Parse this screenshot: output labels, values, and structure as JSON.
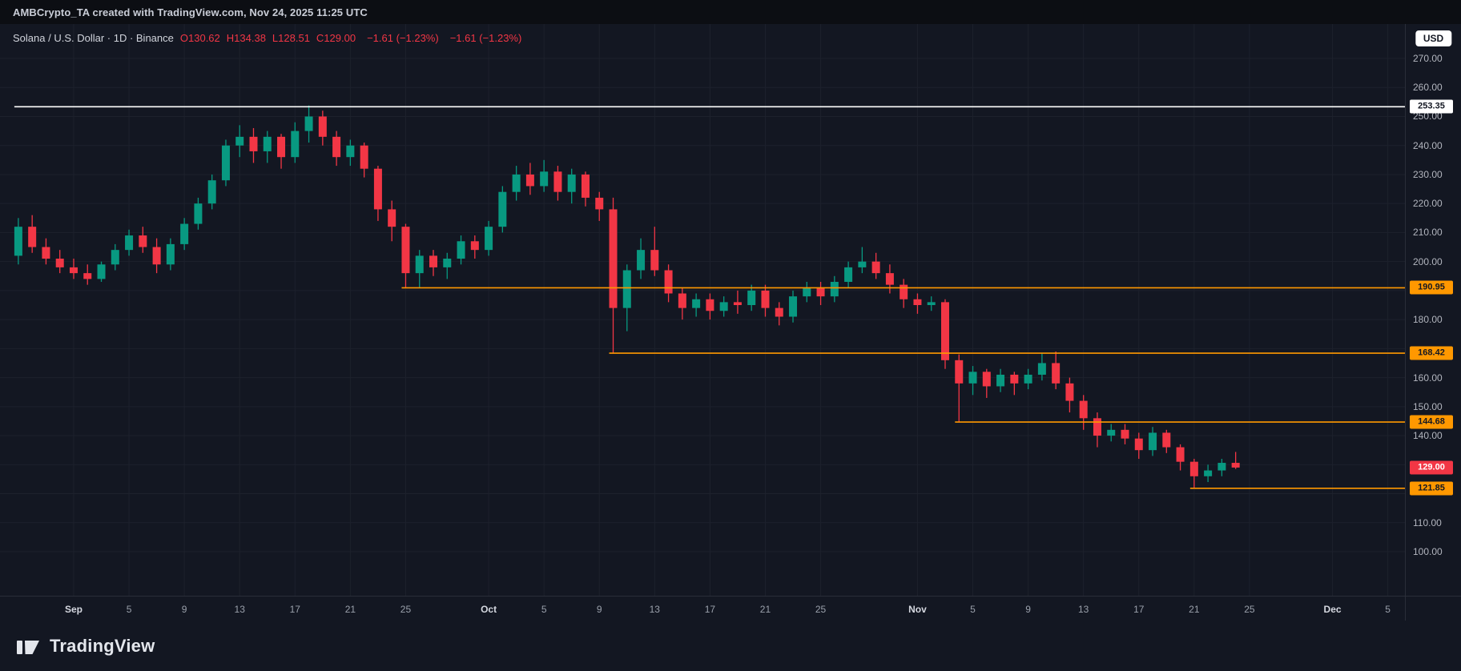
{
  "top_bar": {
    "attribution": "AMBCrypto_TA created with TradingView.com, Nov 24, 2025 11:25 UTC"
  },
  "header": {
    "symbol_title": "Solana / U.S. Dollar · 1D · Binance",
    "ohlc": {
      "o_label": "O",
      "o": "130.62",
      "h_label": "H",
      "h": "134.38",
      "l_label": "L",
      "l": "128.51",
      "c_label": "C",
      "c": "129.00"
    },
    "change": "−1.61 (−1.23%)",
    "change_repeat": "−1.61 (−1.23%)"
  },
  "axis": {
    "currency_button": "USD"
  },
  "footer": {
    "brand": "TradingView"
  },
  "colors": {
    "background": "#131722",
    "grid": "#1d212c",
    "axis_text": "#b2b5be",
    "up": "#089981",
    "down": "#f23645",
    "level_orange": "#ff9800",
    "level_white": "#ffffff",
    "last_price_bg": "#f23645"
  },
  "chart_data": {
    "type": "candlestick",
    "title": "Solana / U.S. Dollar",
    "timeframe": "1D",
    "exchange": "Binance",
    "y_axis": {
      "max": 270,
      "min": 100,
      "step": 10,
      "hidden_ticks": [
        190,
        170,
        130,
        120
      ]
    },
    "x_ticks": [
      {
        "label": "Sep",
        "day": 4,
        "month": true
      },
      {
        "label": "5",
        "day": 8,
        "month": false
      },
      {
        "label": "9",
        "day": 12,
        "month": false
      },
      {
        "label": "13",
        "day": 16,
        "month": false
      },
      {
        "label": "17",
        "day": 20,
        "month": false
      },
      {
        "label": "21",
        "day": 24,
        "month": false
      },
      {
        "label": "25",
        "day": 28,
        "month": false
      },
      {
        "label": "Oct",
        "day": 34,
        "month": true
      },
      {
        "label": "5",
        "day": 38,
        "month": false
      },
      {
        "label": "9",
        "day": 42,
        "month": false
      },
      {
        "label": "13",
        "day": 46,
        "month": false
      },
      {
        "label": "17",
        "day": 50,
        "month": false
      },
      {
        "label": "21",
        "day": 54,
        "month": false
      },
      {
        "label": "25",
        "day": 58,
        "month": false
      },
      {
        "label": "Nov",
        "day": 65,
        "month": true
      },
      {
        "label": "5",
        "day": 69,
        "month": false
      },
      {
        "label": "9",
        "day": 73,
        "month": false
      },
      {
        "label": "13",
        "day": 77,
        "month": false
      },
      {
        "label": "17",
        "day": 81,
        "month": false
      },
      {
        "label": "21",
        "day": 85,
        "month": false
      },
      {
        "label": "25",
        "day": 89,
        "month": false
      },
      {
        "label": "Dec",
        "day": 95,
        "month": true
      },
      {
        "label": "5",
        "day": 99,
        "month": false
      }
    ],
    "levels": [
      {
        "price": 253.35,
        "color": "white",
        "start_day": 0
      },
      {
        "price": 190.95,
        "color": "orange",
        "start_day": 28
      },
      {
        "price": 168.42,
        "color": "orange",
        "start_day": 43
      },
      {
        "price": 144.68,
        "color": "orange",
        "start_day": 68
      },
      {
        "price": 121.85,
        "color": "orange",
        "start_day": 85
      }
    ],
    "last_price": 129.0,
    "candle_format": [
      "date",
      "open",
      "high",
      "low",
      "close"
    ],
    "candles": [
      [
        "Aug 28",
        202,
        215,
        199,
        212
      ],
      [
        "Aug 29",
        212,
        216,
        203,
        205
      ],
      [
        "Aug 30",
        205,
        208,
        199,
        201
      ],
      [
        "Aug 31",
        201,
        204,
        196,
        198
      ],
      [
        "Sep 1",
        198,
        201,
        194,
        196
      ],
      [
        "Sep 2",
        196,
        199,
        192,
        194
      ],
      [
        "Sep 3",
        194,
        200,
        193,
        199
      ],
      [
        "Sep 4",
        199,
        206,
        197,
        204
      ],
      [
        "Sep 5",
        204,
        211,
        202,
        209
      ],
      [
        "Sep 6",
        209,
        212,
        203,
        205
      ],
      [
        "Sep 7",
        205,
        208,
        196,
        199
      ],
      [
        "Sep 8",
        199,
        208,
        197,
        206
      ],
      [
        "Sep 9",
        206,
        215,
        204,
        213
      ],
      [
        "Sep 10",
        213,
        222,
        211,
        220
      ],
      [
        "Sep 11",
        220,
        230,
        218,
        228
      ],
      [
        "Sep 12",
        228,
        242,
        226,
        240
      ],
      [
        "Sep 13",
        240,
        247,
        236,
        243
      ],
      [
        "Sep 14",
        243,
        246,
        234,
        238
      ],
      [
        "Sep 15",
        238,
        245,
        234,
        243
      ],
      [
        "Sep 16",
        243,
        244,
        232,
        236
      ],
      [
        "Sep 17",
        236,
        248,
        234,
        245
      ],
      [
        "Sep 18",
        245,
        253.8,
        241,
        250
      ],
      [
        "Sep 19",
        250,
        252,
        240,
        243
      ],
      [
        "Sep 20",
        243,
        245,
        233,
        236
      ],
      [
        "Sep 21",
        236,
        242,
        233,
        240
      ],
      [
        "Sep 22",
        240,
        241,
        229,
        232
      ],
      [
        "Sep 23",
        232,
        233,
        214,
        218
      ],
      [
        "Sep 24",
        218,
        221,
        207,
        212
      ],
      [
        "Sep 25",
        212,
        213,
        191,
        196
      ],
      [
        "Sep 26",
        196,
        204,
        191,
        202
      ],
      [
        "Sep 27",
        202,
        204,
        195,
        198
      ],
      [
        "Sep 28",
        198,
        203,
        194,
        201
      ],
      [
        "Sep 29",
        201,
        209,
        199,
        207
      ],
      [
        "Sep 30",
        207,
        209,
        201,
        204
      ],
      [
        "Oct 1",
        204,
        214,
        202,
        212
      ],
      [
        "Oct 2",
        212,
        226,
        210,
        224
      ],
      [
        "Oct 3",
        224,
        233,
        221,
        230
      ],
      [
        "Oct 4",
        230,
        234,
        223,
        226
      ],
      [
        "Oct 5",
        226,
        235,
        224,
        231
      ],
      [
        "Oct 6",
        231,
        233,
        221,
        224
      ],
      [
        "Oct 7",
        224,
        232,
        220,
        230
      ],
      [
        "Oct 8",
        230,
        231,
        219,
        222
      ],
      [
        "Oct 9",
        222,
        224,
        214,
        218
      ],
      [
        "Oct 10",
        218,
        222,
        168.5,
        184
      ],
      [
        "Oct 11",
        184,
        199,
        176,
        197
      ],
      [
        "Oct 12",
        197,
        208,
        194,
        204
      ],
      [
        "Oct 13",
        204,
        212,
        195,
        197
      ],
      [
        "Oct 14",
        197,
        199,
        186,
        189
      ],
      [
        "Oct 15",
        189,
        191,
        180,
        184
      ],
      [
        "Oct 16",
        184,
        189,
        181,
        187
      ],
      [
        "Oct 17",
        187,
        189,
        180,
        183
      ],
      [
        "Oct 18",
        183,
        188,
        181,
        186
      ],
      [
        "Oct 19",
        186,
        190,
        182,
        185
      ],
      [
        "Oct 20",
        185,
        192,
        183,
        190
      ],
      [
        "Oct 21",
        190,
        192,
        181,
        184
      ],
      [
        "Oct 22",
        184,
        186,
        178,
        181
      ],
      [
        "Oct 23",
        181,
        190,
        179,
        188
      ],
      [
        "Oct 24",
        188,
        193,
        186,
        191
      ],
      [
        "Oct 25",
        191,
        193,
        185,
        188
      ],
      [
        "Oct 26",
        188,
        195,
        186,
        193
      ],
      [
        "Oct 27",
        193,
        200,
        191,
        198
      ],
      [
        "Oct 28",
        198,
        205,
        196,
        200
      ],
      [
        "Oct 29",
        200,
        203,
        194,
        196
      ],
      [
        "Oct 30",
        196,
        199,
        189,
        192
      ],
      [
        "Oct 31",
        192,
        194,
        184,
        187
      ],
      [
        "Nov 1",
        187,
        189,
        182,
        185
      ],
      [
        "Nov 2",
        185,
        188,
        183,
        186
      ],
      [
        "Nov 3",
        186,
        187,
        163,
        166
      ],
      [
        "Nov 4",
        166,
        168,
        144.7,
        158
      ],
      [
        "Nov 5",
        158,
        164,
        154,
        162
      ],
      [
        "Nov 6",
        162,
        163,
        153,
        157
      ],
      [
        "Nov 7",
        157,
        163,
        155,
        161
      ],
      [
        "Nov 8",
        161,
        162,
        154,
        158
      ],
      [
        "Nov 9",
        158,
        163,
        156,
        161
      ],
      [
        "Nov 10",
        161,
        168.4,
        159,
        165
      ],
      [
        "Nov 11",
        165,
        169,
        156,
        158
      ],
      [
        "Nov 12",
        158,
        160,
        148,
        152
      ],
      [
        "Nov 13",
        152,
        154,
        142,
        146
      ],
      [
        "Nov 14",
        146,
        148,
        136,
        140
      ],
      [
        "Nov 15",
        140,
        144,
        138,
        142
      ],
      [
        "Nov 16",
        142,
        144,
        137,
        139
      ],
      [
        "Nov 17",
        139,
        141,
        132,
        135
      ],
      [
        "Nov 18",
        135,
        143,
        133,
        141
      ],
      [
        "Nov 19",
        141,
        142,
        134,
        136
      ],
      [
        "Nov 20",
        136,
        137,
        128,
        131
      ],
      [
        "Nov 21",
        131,
        132,
        121.9,
        126
      ],
      [
        "Nov 22",
        126,
        130,
        124,
        128
      ],
      [
        "Nov 23",
        128,
        132,
        126,
        130.62
      ],
      [
        "Nov 24",
        130.62,
        134.38,
        128.51,
        129.0
      ]
    ]
  }
}
